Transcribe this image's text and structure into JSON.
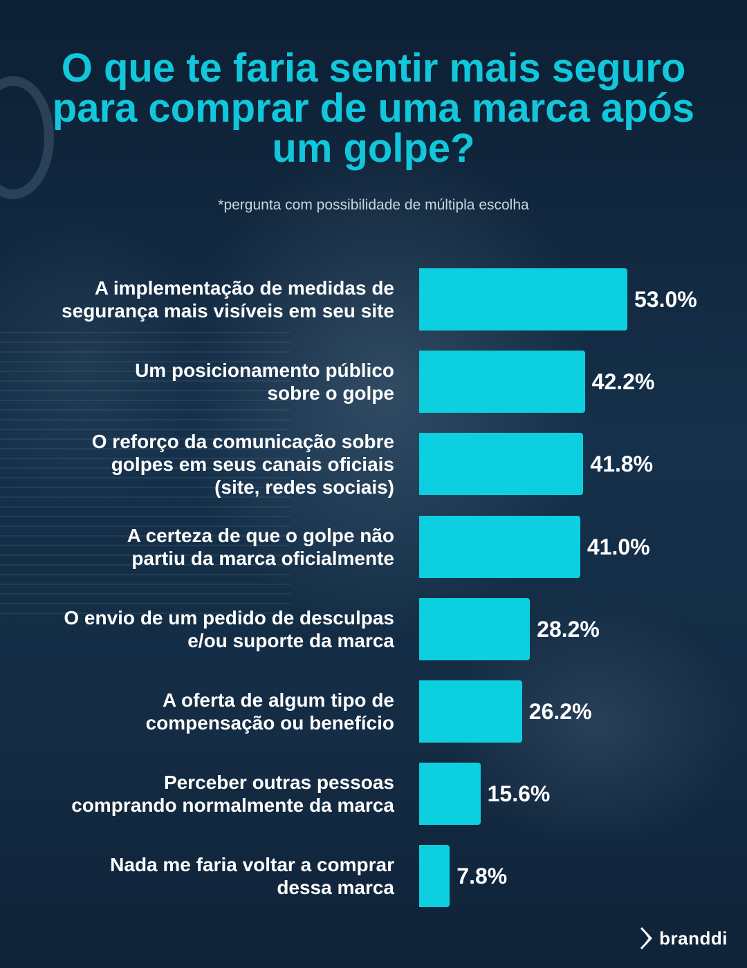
{
  "title": "O que te faria sentir mais seguro para comprar de uma marca após um golpe?",
  "subtitle": "*pergunta com possibilidade de múltipla escolha",
  "brand": {
    "name": "branddi",
    "logo_icon": "chevron-arrow-icon"
  },
  "colors": {
    "accent": "#12c7db",
    "bar": "#0ccfe0",
    "background": "#0e2236",
    "text": "#ffffff"
  },
  "chart_data": {
    "type": "bar",
    "orientation": "horizontal",
    "title": "O que te faria sentir mais seguro para comprar de uma marca após um golpe?",
    "subtitle": "*pergunta com possibilidade de múltipla escolha",
    "categories": [
      "A implementação de medidas de\nsegurança mais visíveis em seu site",
      "Um posicionamento público\nsobre o golpe",
      "O reforço da comunicação sobre\ngolpes em seus canais oficiais \n(site, redes sociais)",
      "A certeza de que o golpe não\npartiu da marca oficialmente",
      "O envio de um pedido de desculpas\ne/ou suporte da marca",
      "A oferta de algum tipo de\ncompensação ou benefício",
      "Perceber outras pessoas\ncomprando normalmente da marca",
      "Nada me faria voltar a comprar\ndessa marca"
    ],
    "values": [
      53.0,
      42.2,
      41.8,
      41.0,
      28.2,
      26.2,
      15.6,
      7.8
    ],
    "value_labels": [
      "53.0%",
      "42.2%",
      "41.8%",
      "41.0%",
      "28.2%",
      "26.2%",
      "15.6%",
      "7.8%"
    ],
    "unit": "%",
    "grid": false,
    "legend": "none"
  }
}
